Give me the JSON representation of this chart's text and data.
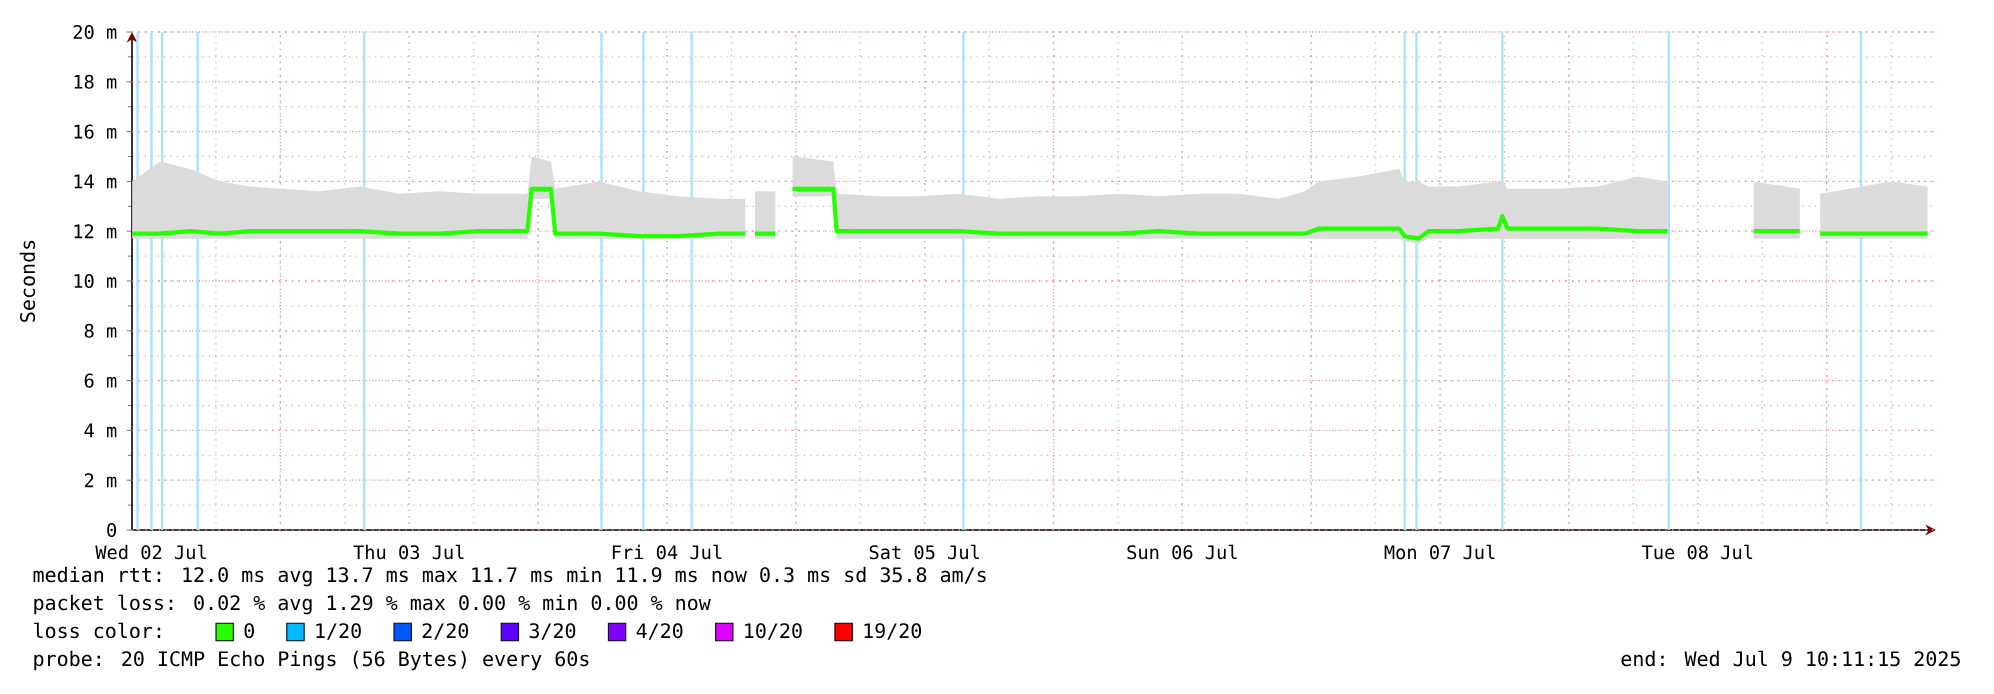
{
  "chart_data": {
    "type": "line",
    "ylabel": "Seconds",
    "legend_title": "loss color:",
    "legend": "bottom",
    "grid": true,
    "xlim": [
      "2025-07-02T10:11",
      "2025-07-09T10:11"
    ],
    "ylim": [
      0,
      20
    ],
    "xticks": [
      {
        "value": "2025-07-02T12:00",
        "label": "Wed 02 Jul"
      },
      {
        "value": "2025-07-03T00:00",
        "label": null
      },
      {
        "value": "2025-07-03T12:00",
        "label": "Thu 03 Jul"
      },
      {
        "value": "2025-07-04T00:00",
        "label": null
      },
      {
        "value": "2025-07-04T12:00",
        "label": "Fri 04 Jul"
      },
      {
        "value": "2025-07-05T00:00",
        "label": null
      },
      {
        "value": "2025-07-05T12:00",
        "label": "Sat 05 Jul"
      },
      {
        "value": "2025-07-06T00:00",
        "label": null
      },
      {
        "value": "2025-07-06T12:00",
        "label": "Sun 06 Jul"
      },
      {
        "value": "2025-07-07T00:00",
        "label": null
      },
      {
        "value": "2025-07-07T12:00",
        "label": "Mon 07 Jul"
      },
      {
        "value": "2025-07-08T00:00",
        "label": null
      },
      {
        "value": "2025-07-08T12:00",
        "label": "Tue 08 Jul"
      },
      {
        "value": "2025-07-09T00:00",
        "label": null
      }
    ],
    "yticks": [
      0,
      {
        "value": 2,
        "label": "2 m"
      },
      {
        "value": 4,
        "label": "4 m"
      },
      {
        "value": 6,
        "label": "6 m"
      },
      {
        "value": 8,
        "label": "8 m"
      },
      {
        "value": 10,
        "label": "10 m"
      },
      {
        "value": 12,
        "label": "12 m"
      },
      {
        "value": 14,
        "label": "14 m"
      },
      {
        "value": 16,
        "label": "16 m"
      },
      {
        "value": 18,
        "label": "18 m"
      },
      {
        "value": 20,
        "label": "20 m"
      }
    ],
    "x": [
      "2025-07-02T10:12",
      "2025-07-02T12:48",
      "2025-07-02T15:36",
      "2025-07-02T18:24",
      "2025-07-02T21:12",
      "2025-07-03T00:00",
      "2025-07-03T03:42",
      "2025-07-03T07:24",
      "2025-07-03T11:06",
      "2025-07-03T14:48",
      "2025-07-03T18:30",
      "2025-07-03T23:00",
      "2025-07-03T23:24",
      "2025-07-04T01:12",
      "2025-07-04T01:36",
      "2025-07-04T05:42",
      "2025-07-04T09:24",
      "2025-07-04T13:06",
      "2025-07-04T16:54",
      "2025-07-04T19:18",
      "2025-07-04T19:42",
      "2025-07-04T20:12",
      "2025-07-04T22:06",
      "2025-07-04T22:48",
      "2025-07-04T23:42",
      "2025-07-05T03:30",
      "2025-07-05T03:48",
      "2025-07-05T07:42",
      "2025-07-05T11:30",
      "2025-07-05T15:12",
      "2025-07-05T18:54",
      "2025-07-05T22:36",
      "2025-07-06T02:24",
      "2025-07-06T06:06",
      "2025-07-06T09:48",
      "2025-07-06T13:30",
      "2025-07-06T17:12",
      "2025-07-06T21:00",
      "2025-07-06T23:24",
      "2025-07-07T00:42",
      "2025-07-07T04:24",
      "2025-07-07T08:12",
      "2025-07-07T08:42",
      "2025-07-07T10:00",
      "2025-07-07T10:54",
      "2025-07-07T13:42",
      "2025-07-07T17:24",
      "2025-07-07T17:48",
      "2025-07-07T18:18",
      "2025-07-07T23:00",
      "2025-07-08T02:42",
      "2025-07-08T06:24",
      "2025-07-08T09:12",
      "2025-07-08T12:00",
      "2025-07-08T17:12",
      "2025-07-08T21:30",
      "2025-07-08T22:12",
      "2025-07-08T23:24",
      "2025-07-09T06:00",
      "2025-07-09T09:24"
    ],
    "series": [
      {
        "name": "0",
        "color": "#26ff00",
        "values": [
          11.9,
          11.9,
          12.0,
          11.9,
          12.0,
          12.0,
          12.0,
          12.0,
          11.9,
          11.9,
          12.0,
          12.0,
          13.7,
          13.7,
          11.9,
          11.9,
          11.8,
          11.8,
          11.9,
          11.9,
          null,
          11.9,
          11.9,
          null,
          13.7,
          13.7,
          12.0,
          12.0,
          12.0,
          12.0,
          11.9,
          11.9,
          11.9,
          11.9,
          12.0,
          11.9,
          11.9,
          11.9,
          11.9,
          12.1,
          12.1,
          12.1,
          11.8,
          11.7,
          12.0,
          12.0,
          12.1,
          12.6,
          12.1,
          12.1,
          12.1,
          12.0,
          12.0,
          null,
          12.0,
          12.0,
          null,
          11.9,
          11.9,
          11.9
        ],
        "lower": [
          11.7,
          11.7,
          11.7,
          11.7,
          11.7,
          11.7,
          11.7,
          11.7,
          11.7,
          11.7,
          11.7,
          11.7,
          13.3,
          13.3,
          11.7,
          11.7,
          11.7,
          11.7,
          11.7,
          11.7,
          null,
          11.7,
          11.7,
          null,
          13.4,
          13.4,
          11.7,
          11.7,
          11.7,
          11.7,
          11.7,
          11.7,
          11.7,
          11.7,
          11.7,
          11.7,
          11.7,
          11.7,
          11.7,
          11.7,
          11.7,
          11.7,
          11.6,
          11.5,
          11.7,
          11.7,
          11.7,
          11.7,
          11.7,
          11.7,
          11.7,
          11.7,
          11.7,
          null,
          11.7,
          11.7,
          null,
          11.7,
          11.7,
          11.7
        ],
        "upper": [
          14.0,
          14.8,
          14.5,
          14.0,
          13.8,
          13.7,
          13.6,
          13.8,
          13.5,
          13.6,
          13.5,
          13.5,
          15.0,
          14.8,
          13.7,
          14.0,
          13.6,
          13.4,
          13.3,
          13.3,
          null,
          13.6,
          13.6,
          null,
          15.0,
          14.8,
          13.5,
          13.4,
          13.4,
          13.5,
          13.3,
          13.4,
          13.4,
          13.5,
          13.4,
          13.5,
          13.5,
          13.3,
          13.6,
          14.0,
          14.2,
          14.5,
          14.0,
          14.0,
          13.8,
          13.8,
          14.0,
          14.0,
          13.7,
          13.7,
          13.8,
          14.2,
          14.0,
          null,
          14.0,
          13.7,
          null,
          13.5,
          14.0,
          13.8
        ]
      },
      {
        "name": "1/20",
        "color": "#00b8ff",
        "values": [
          null,
          null,
          null,
          null,
          null,
          null,
          null,
          null,
          null,
          null,
          null,
          null,
          null,
          null,
          null,
          null,
          null,
          null,
          null,
          null,
          null,
          null,
          null,
          null,
          null,
          null,
          null,
          null,
          null,
          null,
          null,
          null,
          null,
          null,
          null,
          null,
          null,
          null,
          null,
          null,
          null,
          null,
          null,
          null,
          null,
          null,
          null,
          null,
          null,
          null,
          null,
          null,
          null,
          null,
          null,
          null,
          null,
          null,
          null,
          null
        ]
      },
      {
        "name": "2/20",
        "color": "#0059ff",
        "values": [
          null,
          null,
          null,
          null,
          null,
          null,
          null,
          null,
          null,
          null,
          null,
          null,
          null,
          null,
          null,
          null,
          null,
          null,
          null,
          null,
          null,
          null,
          null,
          null,
          null,
          null,
          null,
          null,
          null,
          null,
          null,
          null,
          null,
          null,
          null,
          null,
          null,
          null,
          null,
          null,
          null,
          null,
          null,
          null,
          null,
          null,
          null,
          null,
          null,
          null,
          null,
          null,
          null,
          null,
          null,
          null,
          null,
          null,
          null,
          null
        ]
      },
      {
        "name": "3/20",
        "color": "#5e00ff",
        "values": [
          null,
          null,
          null,
          null,
          null,
          null,
          null,
          null,
          null,
          null,
          null,
          null,
          null,
          null,
          null,
          null,
          null,
          null,
          null,
          null,
          null,
          null,
          null,
          null,
          null,
          null,
          null,
          null,
          null,
          null,
          null,
          null,
          null,
          null,
          null,
          null,
          null,
          null,
          null,
          null,
          null,
          null,
          null,
          null,
          null,
          null,
          null,
          null,
          null,
          null,
          null,
          null,
          null,
          null,
          null,
          null,
          null,
          null,
          null,
          null
        ]
      },
      {
        "name": "4/20",
        "color": "#7e00ff",
        "values": [
          null,
          null,
          null,
          null,
          null,
          null,
          null,
          null,
          null,
          null,
          null,
          null,
          null,
          null,
          null,
          null,
          null,
          null,
          null,
          null,
          null,
          null,
          null,
          null,
          null,
          null,
          null,
          null,
          null,
          null,
          null,
          null,
          null,
          null,
          null,
          null,
          null,
          null,
          null,
          null,
          null,
          null,
          null,
          null,
          null,
          null,
          null,
          null,
          null,
          null,
          null,
          null,
          null,
          null,
          null,
          null,
          null,
          null,
          null,
          null
        ]
      },
      {
        "name": "10/20",
        "color": "#dd00ff",
        "values": [
          null,
          null,
          null,
          null,
          null,
          null,
          null,
          null,
          null,
          null,
          null,
          null,
          null,
          null,
          null,
          null,
          null,
          null,
          null,
          null,
          null,
          null,
          null,
          null,
          null,
          null,
          null,
          null,
          null,
          null,
          null,
          null,
          null,
          null,
          null,
          null,
          null,
          null,
          null,
          null,
          null,
          null,
          null,
          null,
          null,
          null,
          null,
          null,
          null,
          null,
          null,
          null,
          null,
          null,
          null,
          null,
          null,
          null,
          null,
          null
        ]
      },
      {
        "name": "19/20",
        "color": "#ff0000",
        "values": [
          null,
          null,
          null,
          null,
          null,
          null,
          null,
          null,
          null,
          null,
          null,
          null,
          null,
          null,
          null,
          null,
          null,
          null,
          null,
          null,
          null,
          null,
          null,
          null,
          null,
          null,
          null,
          null,
          null,
          null,
          null,
          null,
          null,
          null,
          null,
          null,
          null,
          null,
          null,
          null,
          null,
          null,
          null,
          null,
          null,
          null,
          null,
          null,
          null,
          null,
          null,
          null,
          null,
          null,
          null,
          null,
          null,
          null,
          null,
          null
        ]
      }
    ],
    "ref_lines": [
      {
        "axis": "x",
        "value": "2025-07-02T10:42",
        "color": "#a8e4ff"
      },
      {
        "axis": "x",
        "value": "2025-07-02T12:00",
        "color": "#a8e4ff"
      },
      {
        "axis": "x",
        "value": "2025-07-02T13:00",
        "color": "#a8e4ff"
      },
      {
        "axis": "x",
        "value": "2025-07-02T16:18",
        "color": "#a8e4ff"
      },
      {
        "axis": "x",
        "value": "2025-07-03T07:48",
        "color": "#a8e4ff"
      },
      {
        "axis": "x",
        "value": "2025-07-04T05:54",
        "color": "#a8e4ff"
      },
      {
        "axis": "x",
        "value": "2025-07-04T09:48",
        "color": "#a8e4ff"
      },
      {
        "axis": "x",
        "value": "2025-07-04T14:18",
        "color": "#a8e4ff"
      },
      {
        "axis": "x",
        "value": "2025-07-05T15:36",
        "color": "#a8e4ff"
      },
      {
        "axis": "x",
        "value": "2025-07-07T08:42",
        "color": "#a8e4ff"
      },
      {
        "axis": "x",
        "value": "2025-07-07T09:48",
        "color": "#a8e4ff"
      },
      {
        "axis": "x",
        "value": "2025-07-07T17:48",
        "color": "#a8e4ff"
      },
      {
        "axis": "x",
        "value": "2025-07-08T09:18",
        "color": "#a8e4ff"
      },
      {
        "axis": "x",
        "value": "2025-07-09T03:12",
        "color": "#a8e4ff"
      }
    ],
    "annotations": [
      "median rtt:  12.0 ms avg  13.7 ms max  11.7 ms min  11.9 ms now  0.3 ms sd  35.8   am/s",
      "packet loss: 0.02 % avg  1.29 % max  0.00 % min  0.00 % now",
      "probe:       20 ICMP Echo Pings (56 Bytes) every 60s",
      "end: Wed Jul  9 10:11:15 2025"
    ]
  }
}
